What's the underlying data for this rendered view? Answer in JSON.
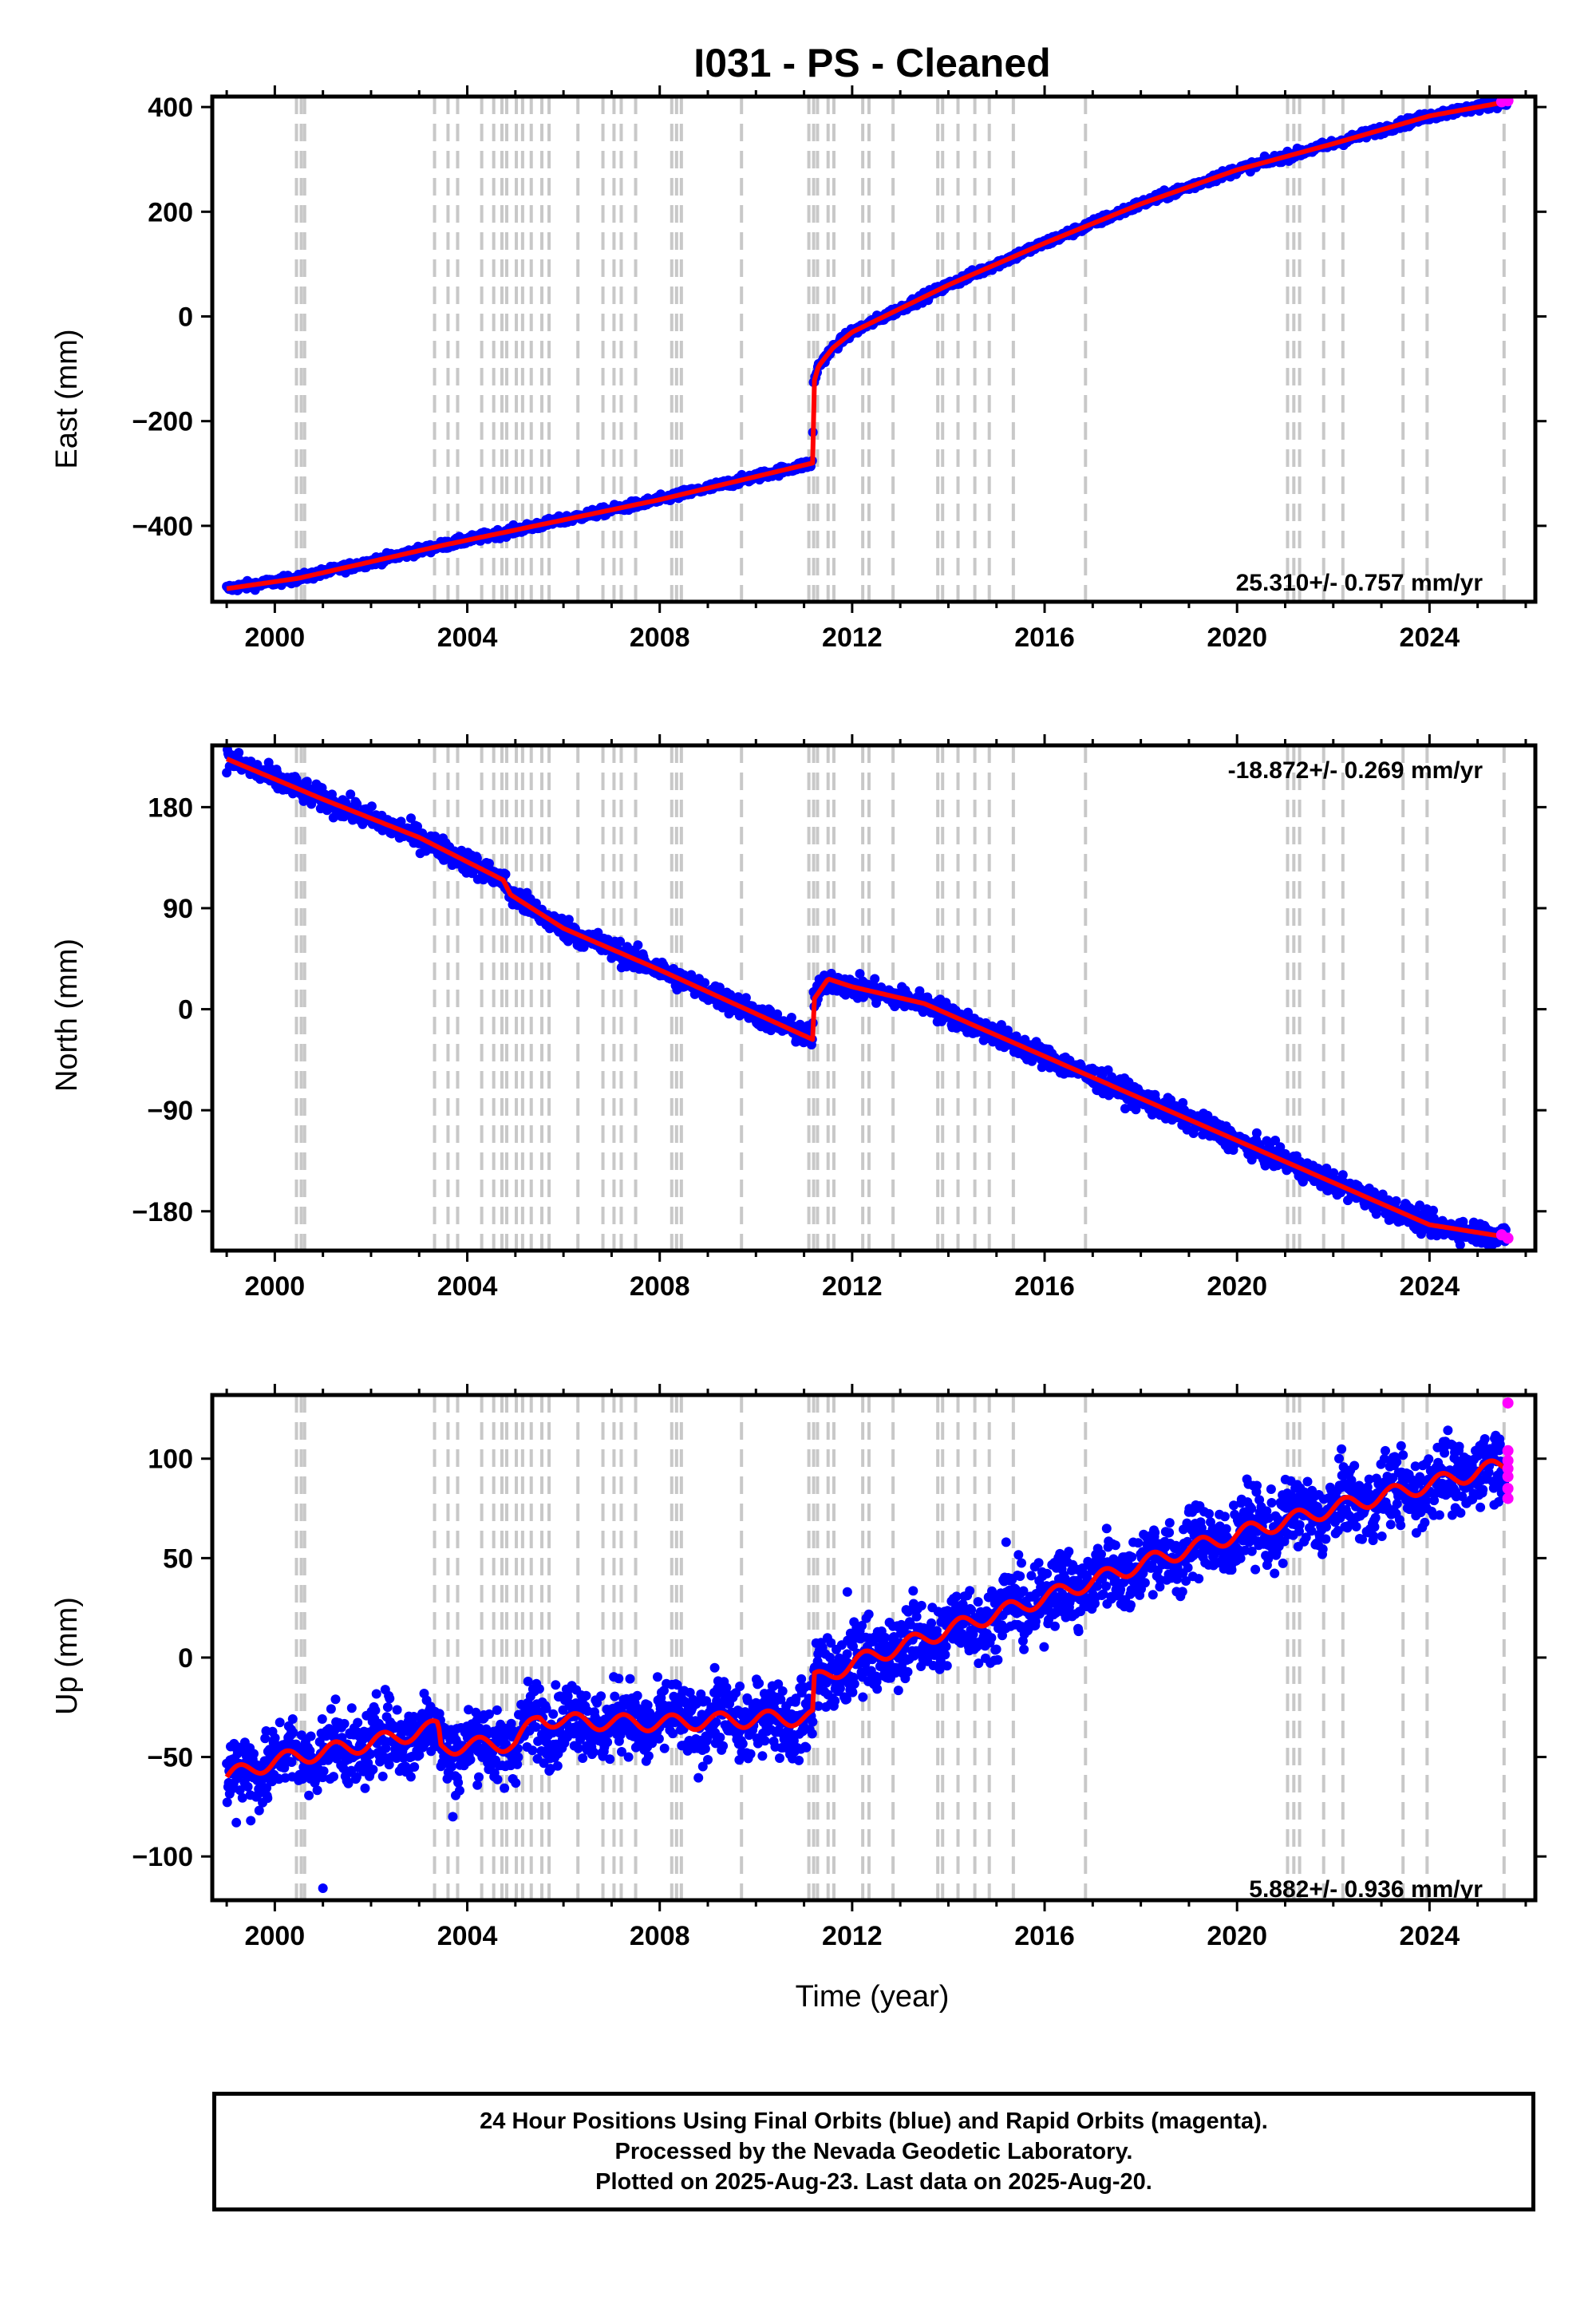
{
  "title": "I031  - PS - Cleaned",
  "xlabel": "Time (year)",
  "colors": {
    "final": "#0000ff",
    "rapid": "#ff00ff",
    "model": "#ff0000",
    "eventline": "#c8c8c8"
  },
  "footer": {
    "line1": "24 Hour Positions Using Final Orbits (blue) and Rapid Orbits (magenta).",
    "line2": "Processed by the Nevada Geodetic Laboratory.",
    "line3": "Plotted on 2025-Aug-23. Last data on 2025-Aug-20."
  },
  "chart_data": [
    {
      "type": "scatter",
      "name": "east",
      "ylabel": "East (mm)",
      "rate_label": "25.310+/- 0.757 mm/yr",
      "xlim": [
        1998.7,
        2026.2
      ],
      "ylim": [
        -545,
        420
      ],
      "xticks": [
        2000,
        2004,
        2008,
        2012,
        2016,
        2020,
        2024
      ],
      "xtick_labels": [
        "2000",
        "2004",
        "2008",
        "2012",
        "2016",
        "2020",
        "2024"
      ],
      "yticks": [
        -400,
        -200,
        0,
        200,
        400
      ],
      "ytick_labels": [
        "−400",
        "−200",
        "0",
        "200",
        "400"
      ],
      "series": [
        {
          "role": "model",
          "x": [
            1999.0,
            2000.5,
            2003.5,
            2008.0,
            2011.18,
            2011.19,
            2011.3,
            2011.6,
            2012.0,
            2014.0,
            2016.0,
            2018.0,
            2020.0,
            2022.0,
            2024.0,
            2025.6
          ],
          "y": [
            -520,
            -500,
            -437,
            -350,
            -280,
            -130,
            -95,
            -60,
            -30,
            60,
            140,
            215,
            280,
            330,
            383,
            410
          ]
        },
        {
          "role": "final",
          "x": [
            1999.0,
            2000.5,
            2003.5,
            2008.0,
            2011.18,
            2011.19,
            2011.3,
            2011.6,
            2012.0,
            2014.0,
            2016.0,
            2018.0,
            2020.0,
            2022.0,
            2024.0,
            2025.6
          ],
          "y": [
            -520,
            -500,
            -437,
            -350,
            -280,
            -130,
            -95,
            -60,
            -30,
            60,
            140,
            215,
            280,
            330,
            383,
            410
          ],
          "scatter": 4
        },
        {
          "role": "rapid",
          "x": [
            2025.5,
            2025.63
          ],
          "y": [
            410,
            412
          ]
        }
      ]
    },
    {
      "type": "scatter",
      "name": "north",
      "ylabel": "North (mm)",
      "rate_label": "-18.872+/- 0.269 mm/yr",
      "xlim": [
        1998.7,
        2026.2
      ],
      "ylim": [
        -215,
        235
      ],
      "xticks": [
        2000,
        2004,
        2008,
        2012,
        2016,
        2020,
        2024
      ],
      "xtick_labels": [
        "2000",
        "2004",
        "2008",
        "2012",
        "2016",
        "2020",
        "2024"
      ],
      "yticks": [
        -180,
        -90,
        0,
        90,
        180
      ],
      "ytick_labels": [
        "−180",
        "−90",
        "0",
        "90",
        "180"
      ],
      "series": [
        {
          "role": "model",
          "x": [
            1999.0,
            2001.0,
            2003.0,
            2004.75,
            2004.9,
            2006.0,
            2008.0,
            2011.18,
            2011.19,
            2011.5,
            2012.0,
            2013.5,
            2016.0,
            2020.0,
            2024.0,
            2025.6
          ],
          "y": [
            223,
            187,
            153,
            115,
            102,
            72,
            35,
            -27,
            8,
            27,
            20,
            5,
            -42,
            -117,
            -192,
            -203
          ]
        },
        {
          "role": "final",
          "x": [
            1999.0,
            2001.0,
            2003.0,
            2004.75,
            2004.9,
            2006.0,
            2008.0,
            2011.18,
            2011.19,
            2011.5,
            2012.0,
            2013.5,
            2016.0,
            2020.0,
            2024.0,
            2025.6
          ],
          "y": [
            223,
            187,
            153,
            115,
            102,
            72,
            35,
            -27,
            8,
            27,
            20,
            5,
            -42,
            -117,
            -192,
            -203
          ],
          "scatter": 5
        },
        {
          "role": "rapid",
          "x": [
            2025.5,
            2025.63
          ],
          "y": [
            -201,
            -204
          ]
        }
      ]
    },
    {
      "type": "scatter",
      "name": "up",
      "ylabel": "Up (mm)",
      "rate_label": "5.882+/- 0.936 mm/yr",
      "xlim": [
        1998.7,
        2026.2
      ],
      "ylim": [
        -122,
        132
      ],
      "xticks": [
        2000,
        2004,
        2008,
        2012,
        2016,
        2020,
        2024
      ],
      "xtick_labels": [
        "2000",
        "2004",
        "2008",
        "2012",
        "2016",
        "2020",
        "2024"
      ],
      "yticks": [
        -100,
        -50,
        0,
        50,
        100
      ],
      "ytick_labels": [
        "−100",
        "−50",
        "0",
        "50",
        "100"
      ],
      "series": [
        {
          "role": "model",
          "x": [
            1999.0,
            2000.0,
            2002.0,
            2003.4,
            2003.45,
            2005.0,
            2005.5,
            2006.0,
            2008.0,
            2010.0,
            2011.18,
            2011.19,
            2012.0,
            2014.0,
            2016.0,
            2018.0,
            2020.0,
            2022.0,
            2024.0,
            2025.6
          ],
          "y": [
            -60,
            -52,
            -43,
            -35,
            -45,
            -43,
            -30,
            -32,
            -33,
            -31,
            -30,
            -12,
            -3,
            14,
            30,
            47,
            62,
            75,
            87,
            97
          ]
        },
        {
          "role": "final",
          "x": [
            1999.0,
            2000.0,
            2002.0,
            2003.4,
            2003.45,
            2005.0,
            2005.5,
            2006.0,
            2008.0,
            2010.0,
            2011.18,
            2011.19,
            2012.0,
            2014.0,
            2016.0,
            2018.0,
            2020.0,
            2022.0,
            2024.0,
            2025.6
          ],
          "y": [
            -60,
            -52,
            -43,
            -35,
            -45,
            -43,
            -30,
            -32,
            -33,
            -31,
            -30,
            -12,
            -3,
            14,
            30,
            47,
            62,
            75,
            87,
            97
          ],
          "scatter": 9
        },
        {
          "role": "rapid",
          "x": [
            2025.63,
            2025.63,
            2025.63,
            2025.63,
            2025.63,
            2025.63,
            2025.63
          ],
          "y": [
            128,
            104,
            99,
            95,
            91,
            85,
            80
          ]
        },
        {
          "role": "outlier",
          "x": [
            2001.0,
            2003.7,
            1999.2,
            1999.5,
            2011.9,
            2015.2
          ],
          "y": [
            -116,
            -80,
            -83,
            -82,
            33,
            58
          ]
        }
      ]
    }
  ],
  "event_lines": [
    2000.45,
    2000.55,
    2000.62,
    2003.32,
    2003.6,
    2003.8,
    2004.3,
    2004.55,
    2004.72,
    2004.82,
    2005.02,
    2005.15,
    2005.33,
    2005.55,
    2005.7,
    2006.3,
    2006.82,
    2007.05,
    2007.2,
    2007.5,
    2008.25,
    2008.35,
    2008.45,
    2009.7,
    2011.1,
    2011.2,
    2011.28,
    2011.5,
    2011.62,
    2012.22,
    2012.35,
    2012.85,
    2013.78,
    2013.88,
    2014.2,
    2014.55,
    2014.85,
    2015.35,
    2016.85,
    2021.05,
    2021.18,
    2021.3,
    2021.8,
    2022.2,
    2023.45,
    2023.95,
    2025.55
  ]
}
